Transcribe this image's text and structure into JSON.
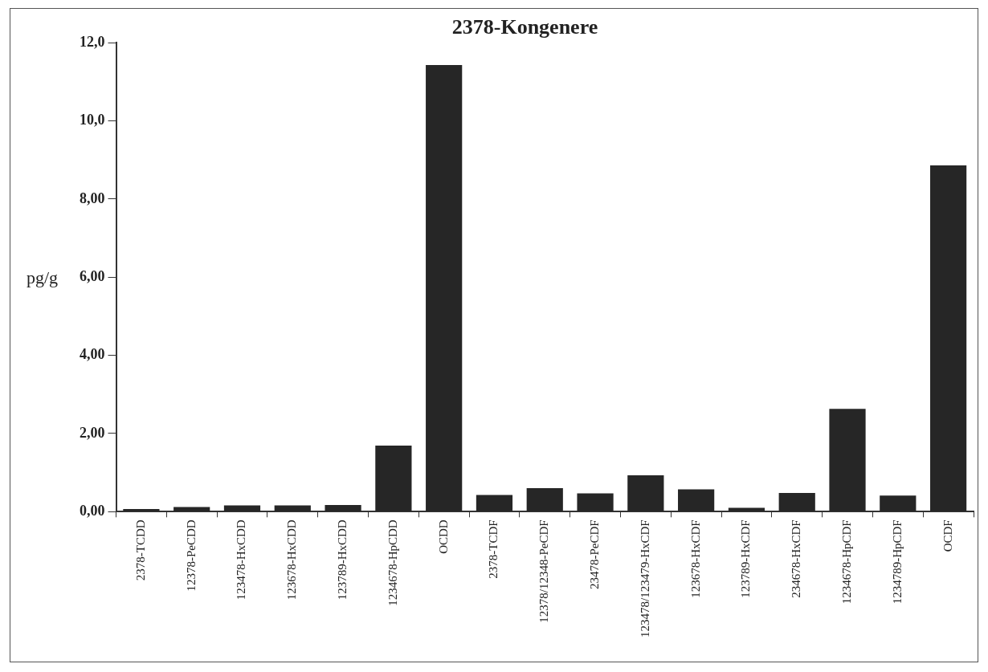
{
  "chart_data": {
    "type": "bar",
    "title": "2378-Kongenere",
    "ylabel": "pg/g",
    "categories": [
      "2378-TCDD",
      "12378-PeCDD",
      "123478-HxCDD",
      "123678-HxCDD",
      "123789-HxCDD",
      "1234678-HpCDD",
      "OCDD",
      "2378-TCDF",
      "12378/12348-PeCDF",
      "23478-PeCDF",
      "123478/123479-HxCDF",
      "123678-HxCDF",
      "123789-HxCDF",
      "234678-HxCDF",
      "1234678-HpCDF",
      "1234789-HpCDF",
      "OCDF"
    ],
    "values": [
      0.07,
      0.12,
      0.16,
      0.16,
      0.17,
      1.69,
      11.43,
      0.43,
      0.6,
      0.47,
      0.93,
      0.57,
      0.1,
      0.48,
      2.63,
      0.41,
      8.86
    ],
    "color": "#262626",
    "ylim": [
      0,
      12
    ],
    "yticks": [
      {
        "value": 0,
        "label": "0,00"
      },
      {
        "value": 2,
        "label": "2,00"
      },
      {
        "value": 4,
        "label": "4,00"
      },
      {
        "value": 6,
        "label": "6,00"
      },
      {
        "value": 8,
        "label": "8,00"
      },
      {
        "value": 10,
        "label": "10,0"
      },
      {
        "value": 12,
        "label": "12,0"
      }
    ],
    "grid": false,
    "legend": false
  }
}
